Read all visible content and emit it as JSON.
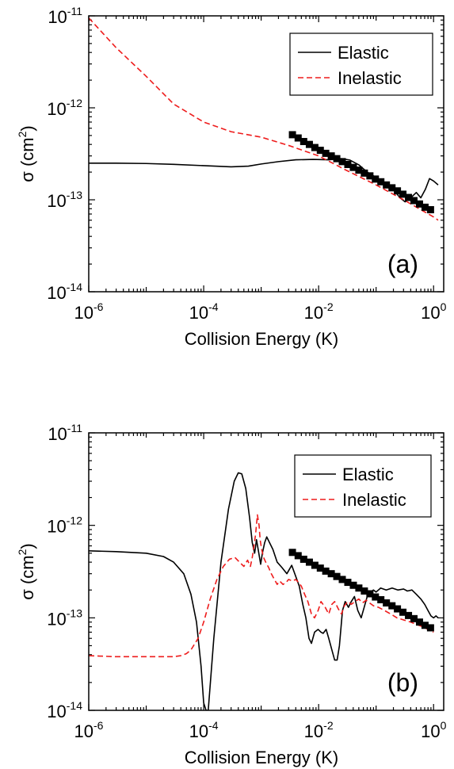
{
  "chart_data": [
    {
      "type": "line",
      "panel_label": "(a)",
      "xlabel": "Collision Energy (K)",
      "ylabel_main": "σ (cm",
      "ylabel_sup": "2",
      "ylabel_close": ")",
      "x_scale": "log",
      "y_scale": "log",
      "xlim": [
        1e-06,
        1.5
      ],
      "ylim": [
        1e-14,
        1e-11
      ],
      "x_ticks": [
        {
          "base": "10",
          "exp": "-6",
          "value": 1e-06
        },
        {
          "base": "10",
          "exp": "-4",
          "value": 0.0001
        },
        {
          "base": "10",
          "exp": "-2",
          "value": 0.01
        },
        {
          "base": "10",
          "exp": "0",
          "value": 1
        }
      ],
      "y_ticks": [
        {
          "base": "10",
          "exp": "-14",
          "value": 1e-14
        },
        {
          "base": "10",
          "exp": "-13",
          "value": 1e-13
        },
        {
          "base": "10",
          "exp": "-12",
          "value": 1e-12
        },
        {
          "base": "10",
          "exp": "-11",
          "value": 1e-11
        }
      ],
      "legend_position": "top-right",
      "series": [
        {
          "name": "Elastic",
          "color": "#000000",
          "dash": "solid",
          "x": [
            1e-06,
            3e-06,
            1e-05,
            3e-05,
            0.0001,
            0.0003,
            0.0006,
            0.001,
            0.002,
            0.004,
            0.008,
            0.015,
            0.025,
            0.035,
            0.05,
            0.07,
            0.1,
            0.14,
            0.2,
            0.26,
            0.32,
            0.4,
            0.5,
            0.6,
            0.72,
            0.85,
            1.0,
            1.2
          ],
          "y": [
            2.5e-13,
            2.5e-13,
            2.48e-13,
            2.43e-13,
            2.35e-13,
            2.28e-13,
            2.32e-13,
            2.45e-13,
            2.6e-13,
            2.72e-13,
            2.75e-13,
            2.72e-13,
            2.8e-13,
            2.7e-13,
            2.4e-13,
            2e-13,
            1.75e-13,
            1.55e-13,
            1.3e-13,
            1.05e-13,
            9.5e-14,
            1.05e-13,
            1.2e-13,
            1.05e-13,
            1.3e-13,
            1.7e-13,
            1.6e-13,
            1.45e-13
          ]
        },
        {
          "name": "Inelastic",
          "color": "#ee1c1c",
          "dash": "dashed",
          "x": [
            1e-06,
            3e-06,
            1e-05,
            3e-05,
            0.0001,
            0.0003,
            0.001,
            0.003,
            0.01,
            0.03,
            0.1,
            0.3,
            1.0,
            1.2
          ],
          "y": [
            9.5e-12,
            4.5e-12,
            2.2e-12,
            1.1e-12,
            7e-13,
            5.5e-13,
            4.8e-13,
            3.9e-13,
            3e-13,
            2.1e-13,
            1.45e-13,
            1e-13,
            6.5e-14,
            6e-14
          ]
        },
        {
          "name": "",
          "color": "#000000",
          "marker": "square",
          "x": [
            0.0035,
            0.0044,
            0.0055,
            0.0069,
            0.0086,
            0.0107,
            0.0133,
            0.0166,
            0.0207,
            0.0258,
            0.0322,
            0.0402,
            0.0501,
            0.0625,
            0.078,
            0.0972,
            0.121,
            0.151,
            0.189,
            0.235,
            0.293,
            0.366,
            0.456,
            0.569,
            0.71,
            0.885
          ],
          "y": [
            5.1e-13,
            4.7e-13,
            4.3e-13,
            4e-13,
            3.7e-13,
            3.45e-13,
            3.2e-13,
            3e-13,
            2.8e-13,
            2.6e-13,
            2.42e-13,
            2.25e-13,
            2.1e-13,
            1.95e-13,
            1.82e-13,
            1.68e-13,
            1.57e-13,
            1.45e-13,
            1.35e-13,
            1.25e-13,
            1.15e-13,
            1.06e-13,
            9.8e-14,
            9e-14,
            8.3e-14,
            7.8e-14
          ]
        }
      ]
    },
    {
      "type": "line",
      "panel_label": "(b)",
      "xlabel": "Collision Energy (K)",
      "ylabel_main": "σ (cm",
      "ylabel_sup": "2",
      "ylabel_close": ")",
      "x_scale": "log",
      "y_scale": "log",
      "xlim": [
        1e-06,
        1.5
      ],
      "ylim": [
        1e-14,
        1e-11
      ],
      "x_ticks": [
        {
          "base": "10",
          "exp": "-6",
          "value": 1e-06
        },
        {
          "base": "10",
          "exp": "-4",
          "value": 0.0001
        },
        {
          "base": "10",
          "exp": "-2",
          "value": 0.01
        },
        {
          "base": "10",
          "exp": "0",
          "value": 1
        }
      ],
      "y_ticks": [
        {
          "base": "10",
          "exp": "-14",
          "value": 1e-14
        },
        {
          "base": "10",
          "exp": "-13",
          "value": 1e-13
        },
        {
          "base": "10",
          "exp": "-12",
          "value": 1e-12
        },
        {
          "base": "10",
          "exp": "-11",
          "value": 1e-11
        }
      ],
      "legend_position": "top-right",
      "series": [
        {
          "name": "Elastic",
          "color": "#000000",
          "dash": "solid",
          "x": [
            1e-06,
            3e-06,
            1e-05,
            2e-05,
            3e-05,
            4.5e-05,
            6e-05,
            7.5e-05,
            9e-05,
            0.0001,
            0.00011,
            0.00012,
            0.00015,
            0.0002,
            0.00027,
            0.00034,
            0.0004,
            0.00046,
            0.00054,
            0.00063,
            0.0007,
            0.00077,
            0.00083,
            0.00091,
            0.00098,
            0.00105,
            0.00115,
            0.00125,
            0.0014,
            0.0016,
            0.0019,
            0.0023,
            0.0028,
            0.0034,
            0.004,
            0.0046,
            0.0053,
            0.006,
            0.0068,
            0.0075,
            0.0085,
            0.0098,
            0.011,
            0.012,
            0.0135,
            0.015,
            0.017,
            0.019,
            0.021,
            0.023,
            0.026,
            0.029,
            0.033,
            0.037,
            0.042,
            0.048,
            0.055,
            0.062,
            0.07,
            0.08,
            0.09,
            0.1,
            0.12,
            0.15,
            0.19,
            0.24,
            0.3,
            0.35,
            0.42,
            0.5,
            0.6,
            0.7,
            0.8,
            0.9,
            1.0,
            1.1,
            1.2
          ],
          "y": [
            5.3e-13,
            5.2e-13,
            5e-13,
            4.6e-13,
            4e-13,
            3e-13,
            1.8e-13,
            9e-14,
            3e-14,
            1.2e-14,
            1e-14,
            1e-14,
            6e-14,
            4e-13,
            1.5e-12,
            3e-12,
            3.7e-12,
            3.6e-12,
            2.5e-12,
            1.2e-12,
            6.5e-13,
            5e-13,
            7e-13,
            5e-13,
            3.8e-13,
            5e-13,
            6.5e-13,
            7.5e-13,
            6.5e-13,
            5.5e-13,
            4e-13,
            3.5e-13,
            3e-13,
            3.7e-13,
            2.8e-13,
            2.2e-13,
            1.4e-13,
            1e-13,
            6e-14,
            5.3e-14,
            7e-14,
            7.5e-14,
            7e-14,
            6.8e-14,
            7.5e-14,
            6e-14,
            4.5e-14,
            3.5e-14,
            3.5e-14,
            5e-14,
            1.2e-13,
            1.5e-13,
            1.3e-13,
            1.5e-13,
            1.7e-13,
            1.2e-13,
            1e-13,
            1.3e-13,
            1.7e-13,
            1.9e-13,
            2e-13,
            1.9e-13,
            2.1e-13,
            2e-13,
            2.1e-13,
            2e-13,
            2.05e-13,
            1.95e-13,
            2e-13,
            1.8e-13,
            1.6e-13,
            1.4e-13,
            1.2e-13,
            1.05e-13,
            1e-13,
            1.05e-13,
            1e-13
          ]
        },
        {
          "name": "Inelastic",
          "color": "#ee1c1c",
          "dash": "dashed",
          "x": [
            1e-06,
            3e-06,
            1e-05,
            2e-05,
            3e-05,
            4e-05,
            5e-05,
            6e-05,
            8e-05,
            0.0001,
            0.00013,
            0.00017,
            0.00022,
            0.00028,
            0.00035,
            0.00042,
            0.0005,
            0.00058,
            0.00065,
            0.0007,
            0.00075,
            0.0008,
            0.00086,
            0.00092,
            0.00096,
            0.00102,
            0.0011,
            0.0012,
            0.00135,
            0.0015,
            0.0017,
            0.0019,
            0.0021,
            0.0024,
            0.0027,
            0.003,
            0.0035,
            0.004,
            0.0045,
            0.005,
            0.0057,
            0.0065,
            0.0075,
            0.0085,
            0.0098,
            0.011,
            0.013,
            0.015,
            0.017,
            0.019,
            0.022,
            0.025,
            0.028,
            0.032,
            0.037,
            0.043,
            0.05,
            0.058,
            0.067,
            0.077,
            0.09,
            0.11,
            0.14,
            0.18,
            0.23,
            0.3,
            0.4,
            0.5,
            0.65,
            0.8,
            1.0
          ],
          "y": [
            3.9e-14,
            3.8e-14,
            3.8e-14,
            3.8e-14,
            3.8e-14,
            3.9e-14,
            4.1e-14,
            4.5e-14,
            6e-14,
            9e-14,
            1.6e-13,
            2.6e-13,
            3.6e-13,
            4.3e-13,
            4.5e-13,
            4e-13,
            3.6e-13,
            4.2e-13,
            3.6e-13,
            4.5e-13,
            6e-13,
            8e-13,
            1.3e-12,
            1e-12,
            7e-13,
            5.5e-13,
            4.5e-13,
            4e-13,
            3.5e-13,
            3e-13,
            2.6e-13,
            2.3e-13,
            2.5e-13,
            2.3e-13,
            2.4e-13,
            2.6e-13,
            2.5e-13,
            2.6e-13,
            2.4e-13,
            2.2e-13,
            1.8e-13,
            1.5e-13,
            1.1e-13,
            1e-13,
            1.2e-13,
            1.5e-13,
            1.3e-13,
            1.1e-13,
            1.4e-13,
            1.5e-13,
            1.25e-13,
            1.1e-13,
            1.35e-13,
            1.5e-13,
            1.4e-13,
            1.5e-13,
            1.6e-13,
            1.45e-13,
            1.55e-13,
            1.45e-13,
            1.35e-13,
            1.3e-13,
            1.2e-13,
            1.1e-13,
            1e-13,
            9.5e-14,
            9e-14,
            8.5e-14,
            8e-14,
            7.5e-14,
            7e-14
          ]
        },
        {
          "name": "",
          "color": "#000000",
          "marker": "square",
          "x": [
            0.0035,
            0.0044,
            0.0055,
            0.0069,
            0.0086,
            0.0107,
            0.0133,
            0.0166,
            0.0207,
            0.0258,
            0.0322,
            0.0402,
            0.0501,
            0.0625,
            0.078,
            0.0972,
            0.121,
            0.151,
            0.189,
            0.235,
            0.293,
            0.366,
            0.456,
            0.569,
            0.71,
            0.885
          ],
          "y": [
            5.1e-13,
            4.7e-13,
            4.3e-13,
            4e-13,
            3.7e-13,
            3.45e-13,
            3.2e-13,
            3e-13,
            2.8e-13,
            2.6e-13,
            2.42e-13,
            2.25e-13,
            2.1e-13,
            1.95e-13,
            1.82e-13,
            1.68e-13,
            1.57e-13,
            1.45e-13,
            1.35e-13,
            1.25e-13,
            1.15e-13,
            1.06e-13,
            9.8e-14,
            9e-14,
            8.3e-14,
            7.8e-14
          ]
        }
      ]
    }
  ]
}
